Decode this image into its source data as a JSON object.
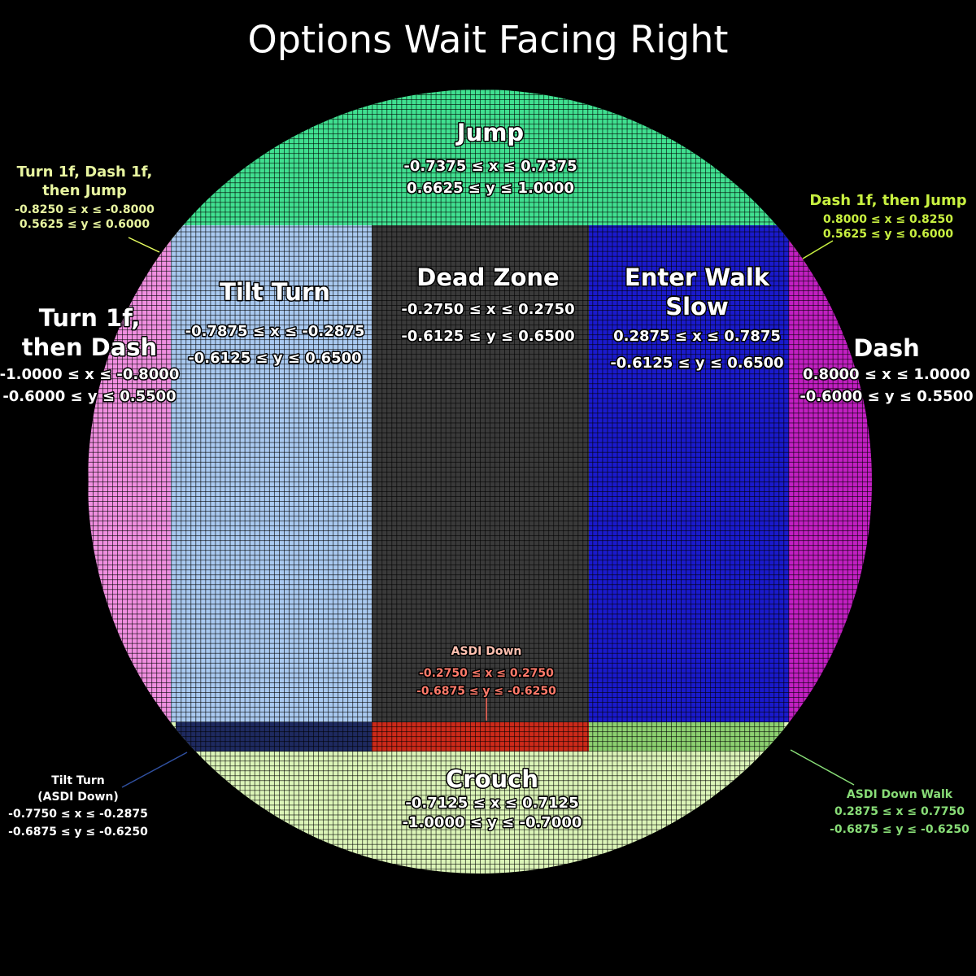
{
  "title": "Options Wait Facing Right",
  "regions": [
    {
      "label_lines": [
        "Jump"
      ],
      "x_range": "-0.7375 ≤ x ≤ 0.7375",
      "y_range": "0.6625 ≤ y ≤ 1.0000"
    },
    {
      "label_lines": [
        "Dead Zone"
      ],
      "x_range": "-0.2750 ≤ x ≤ 0.2750",
      "y_range": "-0.6125 ≤ y ≤ 0.6500"
    },
    {
      "label_lines": [
        "Tilt Turn"
      ],
      "x_range": "-0.7875 ≤ x ≤ -0.2875",
      "y_range": "-0.6125 ≤ y ≤ 0.6500"
    },
    {
      "label_lines": [
        "Enter Walk",
        "Slow"
      ],
      "x_range": "0.2875 ≤ x ≤ 0.7875",
      "y_range": "-0.6125 ≤ y ≤ 0.6500"
    },
    {
      "label_lines": [
        "Dash"
      ],
      "x_range": "0.8000 ≤ x ≤ 1.0000",
      "y_range": "-0.6000 ≤ y ≤ 0.5500"
    },
    {
      "label_lines": [
        "Turn 1f,",
        "then Dash"
      ],
      "x_range": "-1.0000 ≤ x ≤ -0.8000",
      "y_range": "-0.6000 ≤ y ≤ 0.5500"
    },
    {
      "label_lines": [
        "Turn 1f, Dash 1f,",
        "then Jump"
      ],
      "x_range": "-0.8250 ≤ x ≤ -0.8000",
      "y_range": "0.5625 ≤ y ≤ 0.6000"
    },
    {
      "label_lines": [
        "Dash 1f, then Jump"
      ],
      "x_range": "0.8000 ≤ x ≤ 0.8250",
      "y_range": "0.5625 ≤ y ≤ 0.6000"
    },
    {
      "label_lines": [
        "ASDI Down"
      ],
      "x_range": "-0.2750 ≤ x ≤ 0.2750",
      "y_range": "-0.6875 ≤ y ≤ -0.6250"
    },
    {
      "label_lines": [
        "Crouch"
      ],
      "x_range": "-0.7125 ≤ x ≤ 0.7125",
      "y_range": "-1.0000 ≤ y ≤ -0.7000"
    },
    {
      "label_lines": [
        "Tilt Turn",
        "(ASDI Down)"
      ],
      "x_range": "-0.7750 ≤ x ≤ -0.2875",
      "y_range": "-0.6875 ≤ y ≤ -0.6250"
    },
    {
      "label_lines": [
        "ASDI Down Walk"
      ],
      "x_range": "0.2875 ≤ x ≤ 0.7750",
      "y_range": "-0.6875 ≤ y ≤ -0.6250"
    }
  ]
}
